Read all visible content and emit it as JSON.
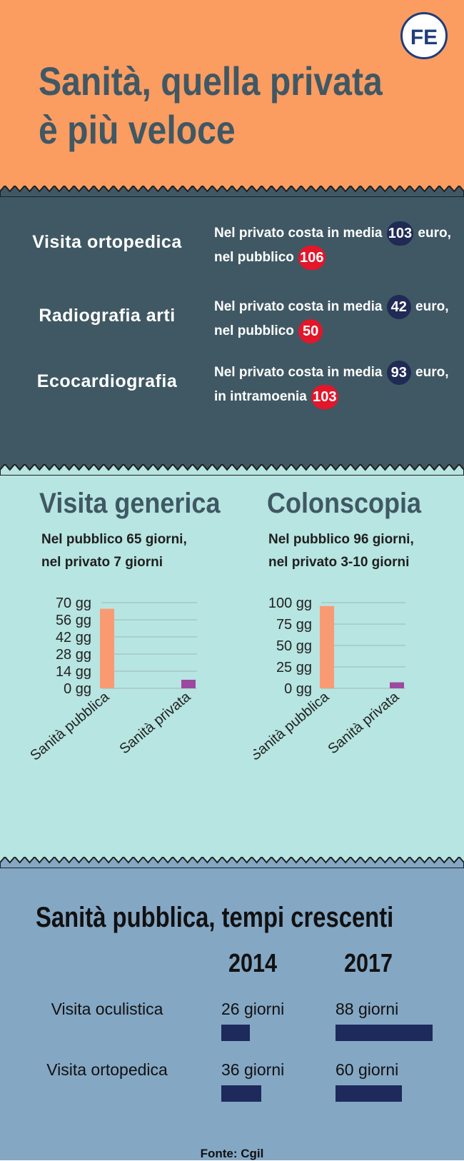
{
  "header": {
    "title_line1": "Sanità, quella privata",
    "title_line2": "è più veloce",
    "logo_text": "FE",
    "background": "#fb9c61",
    "title_color": "#3f5864"
  },
  "costs": {
    "background": "#3f5864",
    "private_color": "#1f2a55",
    "public_color": "#e3162a",
    "rows": [
      {
        "label": "Visita ortopedica",
        "line1_prefix": "Nel privato costa in media",
        "private_value": "103",
        "line1_suffix": "euro,",
        "line2_prefix": "nel pubblico",
        "public_value": "106"
      },
      {
        "label": "Radiografia arti",
        "line1_prefix": "Nel privato costa in media",
        "private_value": "42",
        "line1_suffix": "euro,",
        "line2_prefix": "nel pubblico",
        "public_value": "50"
      },
      {
        "label": "Ecocardiografia",
        "line1_prefix": "Nel privato costa in media",
        "private_value": "93",
        "line1_suffix": "euro,",
        "line2_prefix": "in intramoenia",
        "public_value": "103"
      }
    ]
  },
  "waits": {
    "background": "#b7e5e1",
    "left": {
      "title": "Visita generica",
      "sub1": "Nel pubblico 65 giorni,",
      "sub2": "nel privato 7 giorni"
    },
    "right": {
      "title": "Colonscopia",
      "sub1": "Nel pubblico 96 giorni,",
      "sub2": "nel privato 3-10 giorni"
    }
  },
  "chart_data": [
    {
      "type": "bar",
      "categories": [
        "Sanità pubblica",
        "Sanità privata"
      ],
      "values": [
        65,
        7
      ],
      "colors": [
        "#fa9a73",
        "#9b4aa0"
      ],
      "yticks": [
        "0 gg",
        "14 gg",
        "28 gg",
        "42 gg",
        "56 gg",
        "70 gg"
      ],
      "ylim": [
        0,
        70
      ],
      "grid": true
    },
    {
      "type": "bar",
      "categories": [
        "Sanità pubblica",
        "Sanità privata"
      ],
      "values": [
        96,
        7
      ],
      "colors": [
        "#fa9a73",
        "#9b4aa0"
      ],
      "yticks": [
        "0 gg",
        "25 gg",
        "50 gg",
        "75 gg",
        "100 gg"
      ],
      "ylim": [
        0,
        100
      ],
      "grid": true
    },
    {
      "type": "bar",
      "title": "Sanità pubblica, tempi crescenti",
      "categories": [
        "Visita oculistica",
        "Visita ortopedica"
      ],
      "series": [
        {
          "name": "2014",
          "values": [
            26,
            36
          ],
          "labels": [
            "26 giorni",
            "36 giorni"
          ]
        },
        {
          "name": "2017",
          "values": [
            88,
            60
          ],
          "labels": [
            "88 giorni",
            "60 giorni"
          ]
        }
      ],
      "color": "#1e2a5b",
      "source": "Fonte: Cgil"
    }
  ]
}
